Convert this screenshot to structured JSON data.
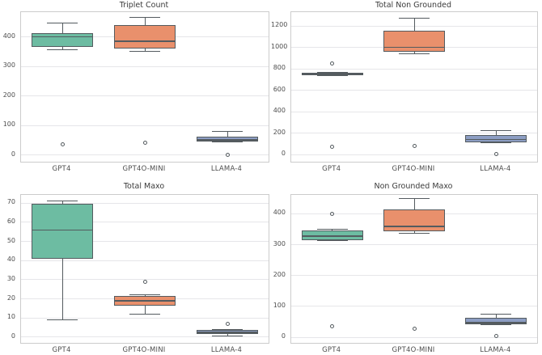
{
  "figure": {
    "background": "#ffffff"
  },
  "palette": {
    "box_fills": [
      "#6dbca2",
      "#e9906c",
      "#8c9dc3"
    ],
    "line_color": "#545b5f",
    "grid_color": "#e6e6e9",
    "spine_color": "#cccccc",
    "title_color": "#3b3b3b",
    "tick_color": "#4d4d4d"
  },
  "chart_data": [
    {
      "type": "box",
      "title": "Triplet Count",
      "categories": [
        "GPT4",
        "GPT4O-MINI",
        "LLAMA-4"
      ],
      "yticks": [
        0,
        100,
        200,
        300,
        400
      ],
      "ylim": [
        -22,
        484
      ],
      "grid": true,
      "legend": "none",
      "series": [
        {
          "name": "GPT4",
          "whisker_low": 357,
          "q1": 366,
          "median": 400,
          "q3": 413,
          "whisker_high": 447,
          "outliers": [
            38
          ]
        },
        {
          "name": "GPT4O-MINI",
          "whisker_low": 352,
          "q1": 361,
          "median": 386,
          "q3": 439,
          "whisker_high": 465,
          "outliers": [
            41
          ]
        },
        {
          "name": "LLAMA-4",
          "whisker_low": 45,
          "q1": 45,
          "median": 52,
          "q3": 62,
          "whisker_high": 80,
          "outliers": [
            2
          ]
        }
      ]
    },
    {
      "type": "box",
      "title": "Total Non Grounded",
      "categories": [
        "GPT4",
        "GPT4O-MINI",
        "LLAMA-4"
      ],
      "yticks": [
        0,
        200,
        400,
        600,
        800,
        1000,
        1200
      ],
      "ylim": [
        -68,
        1332
      ],
      "grid": true,
      "legend": "none",
      "series": [
        {
          "name": "GPT4",
          "whisker_low": 737,
          "q1": 740,
          "median": 752,
          "q3": 762,
          "whisker_high": 765,
          "outliers": [
            848,
            75
          ]
        },
        {
          "name": "GPT4O-MINI",
          "whisker_low": 944,
          "q1": 959,
          "median": 1004,
          "q3": 1158,
          "whisker_high": 1279,
          "outliers": [
            83
          ]
        },
        {
          "name": "LLAMA-4",
          "whisker_low": 110,
          "q1": 115,
          "median": 140,
          "q3": 185,
          "whisker_high": 225,
          "outliers": [
            5
          ]
        }
      ]
    },
    {
      "type": "box",
      "title": "Total Maxo",
      "categories": [
        "GPT4",
        "GPT4O-MINI",
        "LLAMA-4"
      ],
      "yticks": [
        0,
        10,
        20,
        30,
        40,
        50,
        60,
        70
      ],
      "ylim": [
        -3,
        74.3
      ],
      "grid": true,
      "legend": "none",
      "series": [
        {
          "name": "GPT4",
          "whisker_low": 9,
          "q1": 41,
          "median": 56,
          "q3": 69.5,
          "whisker_high": 71,
          "outliers": []
        },
        {
          "name": "GPT4O-MINI",
          "whisker_low": 12,
          "q1": 16.5,
          "median": 19,
          "q3": 21.5,
          "whisker_high": 22,
          "outliers": [
            29
          ]
        },
        {
          "name": "LLAMA-4",
          "whisker_low": 0.8,
          "q1": 1.5,
          "median": 2.5,
          "q3": 3.8,
          "whisker_high": 3.8,
          "outliers": [
            7
          ]
        }
      ]
    },
    {
      "type": "box",
      "title": "Non Grounded Maxo",
      "categories": [
        "GPT4",
        "GPT4O-MINI",
        "LLAMA-4"
      ],
      "yticks": [
        0,
        100,
        200,
        300,
        400
      ],
      "ylim": [
        -18,
        461
      ],
      "grid": true,
      "legend": "none",
      "series": [
        {
          "name": "GPT4",
          "whisker_low": 312,
          "q1": 314,
          "median": 328,
          "q3": 345,
          "whisker_high": 349,
          "outliers": [
            399,
            36
          ]
        },
        {
          "name": "GPT4O-MINI",
          "whisker_low": 336,
          "q1": 342,
          "median": 359,
          "q3": 414,
          "whisker_high": 449,
          "outliers": [
            28
          ]
        },
        {
          "name": "LLAMA-4",
          "whisker_low": 42,
          "q1": 43,
          "median": 47,
          "q3": 64,
          "whisker_high": 74,
          "outliers": [
            3
          ]
        }
      ]
    }
  ]
}
